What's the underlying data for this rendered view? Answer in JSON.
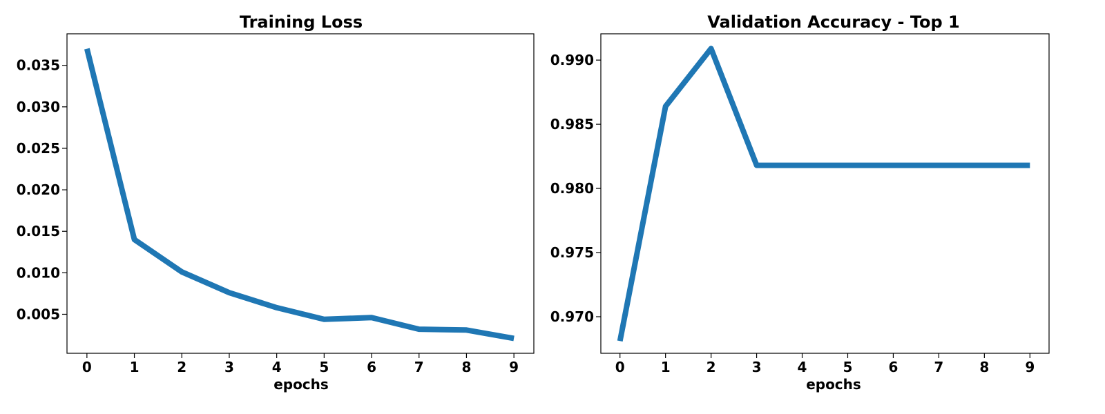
{
  "chart_data": [
    {
      "type": "line",
      "title": "Training Loss",
      "xlabel": "epochs",
      "ylabel": "",
      "x": [
        0,
        1,
        2,
        3,
        4,
        5,
        6,
        7,
        8,
        9
      ],
      "series": [
        {
          "name": "",
          "color": "#1f77b4",
          "values": [
            0.037,
            0.014,
            0.0101,
            0.0076,
            0.0058,
            0.0044,
            0.0046,
            0.0032,
            0.0031,
            0.0021
          ]
        }
      ],
      "xticks": [
        "0",
        "1",
        "2",
        "3",
        "4",
        "5",
        "6",
        "7",
        "8",
        "9"
      ],
      "yticks": [
        "0.005",
        "0.010",
        "0.015",
        "0.020",
        "0.025",
        "0.030",
        "0.035"
      ],
      "xlim": [
        -0.42,
        9.42
      ],
      "ylim": [
        0.0003,
        0.0388
      ],
      "grid": false,
      "legend": "none"
    },
    {
      "type": "line",
      "title": "Validation Accuracy - Top 1",
      "xlabel": "epochs",
      "ylabel": "",
      "x": [
        0,
        1,
        2,
        3,
        4,
        5,
        6,
        7,
        8,
        9
      ],
      "series": [
        {
          "name": "",
          "color": "#1f77b4",
          "values": [
            0.9681,
            0.9864,
            0.9909,
            0.9818,
            0.9818,
            0.9818,
            0.9818,
            0.9818,
            0.9818,
            0.9818
          ]
        }
      ],
      "xticks": [
        "0",
        "1",
        "2",
        "3",
        "4",
        "5",
        "6",
        "7",
        "8",
        "9"
      ],
      "yticks": [
        "0.970",
        "0.975",
        "0.980",
        "0.985",
        "0.990"
      ],
      "xlim": [
        -0.42,
        9.42
      ],
      "ylim": [
        0.96715,
        0.99205
      ],
      "grid": false,
      "legend": "none"
    }
  ]
}
